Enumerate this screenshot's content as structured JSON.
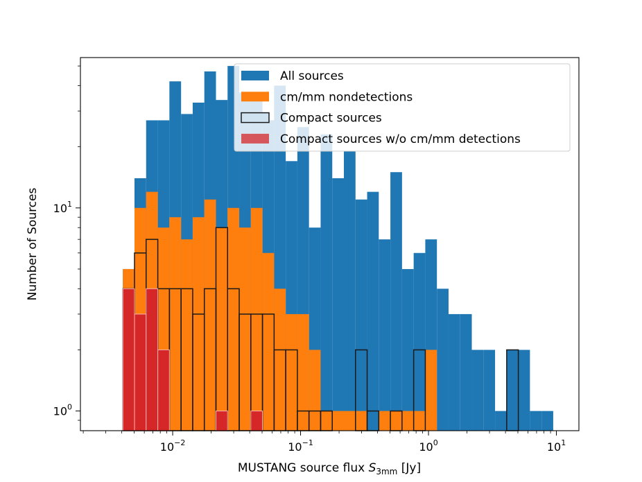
{
  "chart_data": {
    "type": "bar",
    "xlabel_main": "MUSTANG source flux ",
    "xlabel_var": "S",
    "xlabel_sub": "3mm",
    "xlabel_unit": " [Jy]",
    "ylabel": "Number of Sources",
    "x_scale": "log",
    "y_scale": "log",
    "xlim": [
      0.0019,
      15
    ],
    "ylim": [
      0.8,
      55
    ],
    "x_ticks": [
      {
        "value": 0.01,
        "base": "10",
        "exp": "−2"
      },
      {
        "value": 0.1,
        "base": "10",
        "exp": "−1"
      },
      {
        "value": 1,
        "base": "10",
        "exp": "0"
      },
      {
        "value": 10,
        "base": "10",
        "exp": "1"
      }
    ],
    "y_ticks": [
      {
        "value": 1,
        "base": "10",
        "exp": "0"
      },
      {
        "value": 10,
        "base": "10",
        "exp": "1"
      }
    ],
    "legend_position": "top-right",
    "bin_edges": [
      0.00408,
      0.00503,
      0.0062,
      0.00765,
      0.00943,
      0.01163,
      0.01434,
      0.01768,
      0.0218,
      0.02687,
      0.03313,
      0.04085,
      0.05036,
      0.06209,
      0.07655,
      0.09438,
      0.11636,
      0.14346,
      0.17687,
      0.21806,
      0.26884,
      0.33145,
      0.40864,
      0.50381,
      0.62114,
      0.76579,
      0.94413,
      1.164,
      1.43508,
      1.76928,
      2.18131,
      2.68929,
      3.31556,
      4.08767,
      5.0396,
      6.21321,
      7.66012,
      9.44398
    ],
    "series": [
      {
        "name": "All sources",
        "color": "#1f77b4",
        "style": "filled",
        "values": [
          5,
          14,
          27,
          27,
          42,
          29,
          33,
          47,
          34,
          50,
          37,
          36,
          27,
          40,
          17,
          25,
          8,
          23,
          14,
          19,
          11,
          12,
          7,
          15,
          5,
          6,
          7,
          4,
          3,
          3,
          2,
          2,
          1,
          2,
          2,
          1,
          1
        ]
      },
      {
        "name": "cm/mm nondetections",
        "color": "#ff7f0e",
        "style": "filled",
        "values": [
          5,
          10,
          12,
          8,
          9,
          7,
          9,
          11,
          8,
          10,
          8,
          10,
          6,
          4,
          3,
          3,
          2,
          1,
          1,
          1,
          1,
          0,
          1,
          1,
          1,
          1,
          2,
          0,
          0,
          0,
          0,
          0,
          0,
          0,
          0,
          0,
          0
        ]
      },
      {
        "name": "Compact sources",
        "color": "#cfe2f0",
        "style": "outline",
        "values": [
          4,
          6,
          7,
          4,
          4,
          4,
          3,
          4,
          8,
          4,
          3,
          3,
          3,
          2,
          2,
          1,
          1,
          1,
          0,
          0,
          2,
          1,
          0,
          1,
          0,
          2,
          0,
          0,
          0,
          0,
          0,
          0,
          0,
          2,
          0,
          0,
          0
        ]
      },
      {
        "name": "Compact sources w/o cm/mm detections",
        "color": "#d62728",
        "style": "filled",
        "values": [
          4,
          3,
          4,
          2,
          0,
          0,
          0,
          0,
          1,
          0,
          0,
          1,
          0,
          0,
          0,
          0,
          0,
          0,
          0,
          0,
          0,
          0,
          0,
          0,
          0,
          0,
          0,
          0,
          0,
          0,
          0,
          0,
          0,
          0,
          0,
          0,
          0
        ]
      }
    ]
  }
}
